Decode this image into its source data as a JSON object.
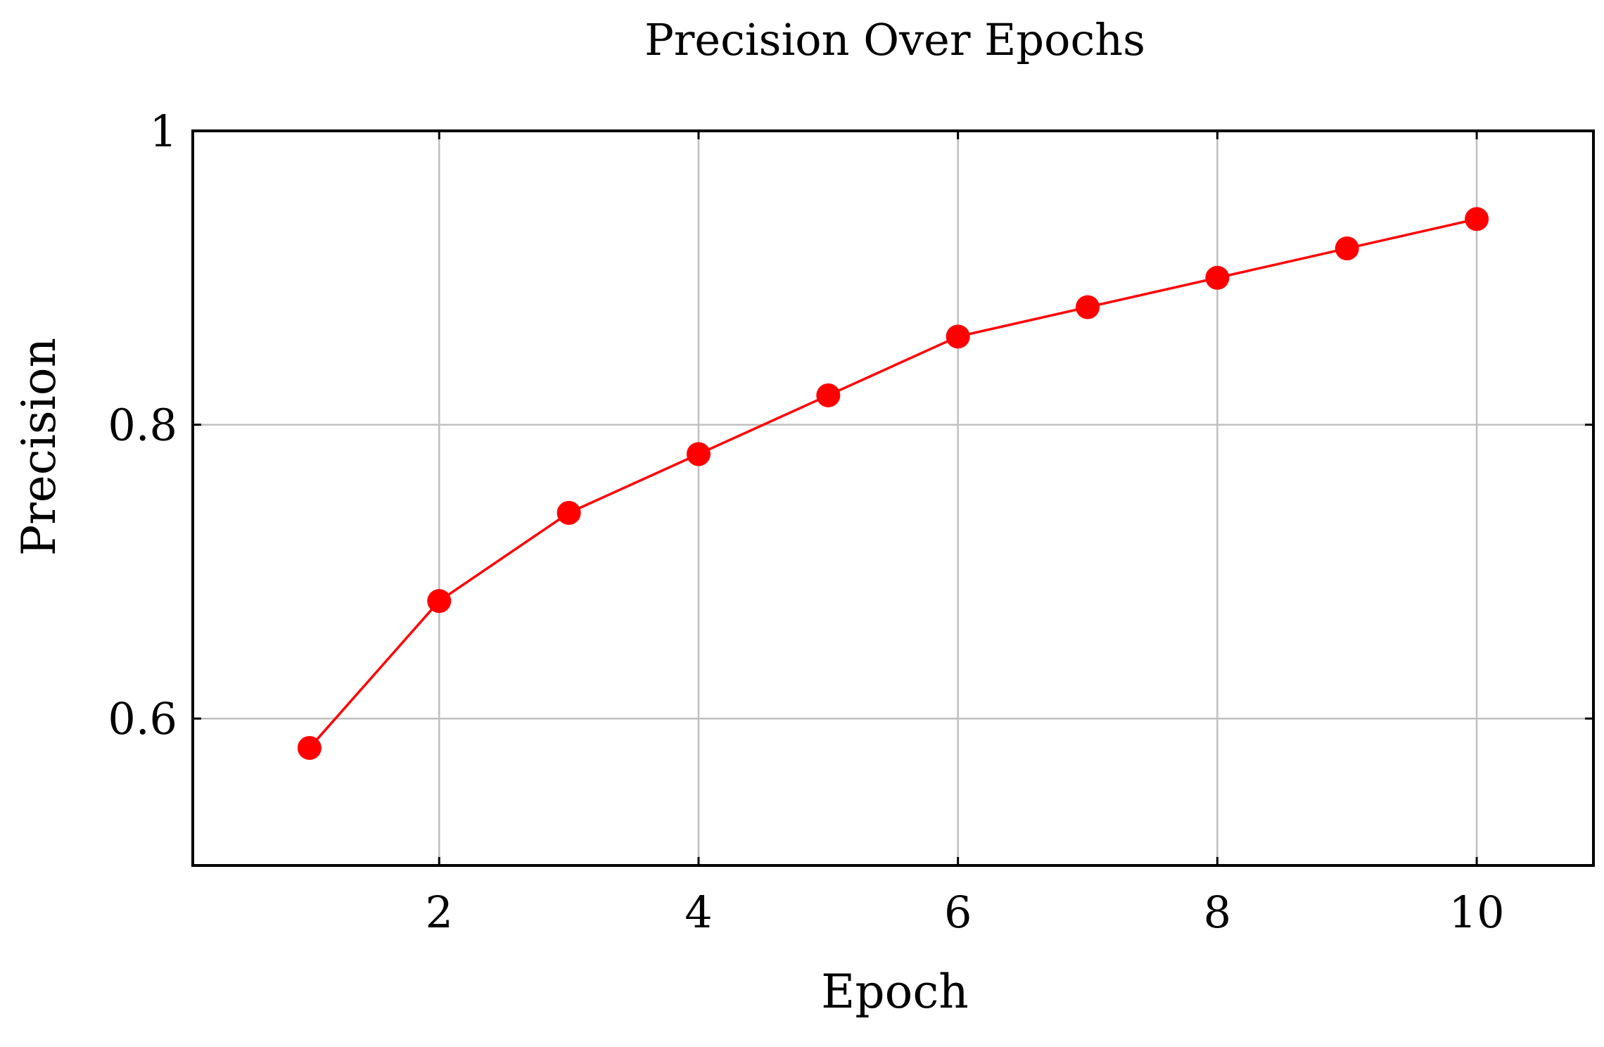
{
  "chart_data": {
    "type": "line",
    "title": "Precision Over Epochs",
    "xlabel": "Epoch",
    "ylabel": "Precision",
    "x": [
      1,
      2,
      3,
      4,
      5,
      6,
      7,
      8,
      9,
      10
    ],
    "series": [
      {
        "values": [
          0.58,
          0.68,
          0.74,
          0.78,
          0.82,
          0.86,
          0.88,
          0.9,
          0.92,
          0.94
        ],
        "color": "#ff0000",
        "marker": "circle"
      }
    ],
    "xticks": [
      2,
      4,
      6,
      8,
      10
    ],
    "yticks": [
      0.6,
      0.8,
      1
    ],
    "ytick_labels": [
      "0.6",
      "0.8",
      "1"
    ],
    "xlim": [
      0.1,
      10.9
    ],
    "ylim": [
      0.5,
      1.0
    ],
    "grid": true,
    "grid_color": "#bfbfbf",
    "axis_color": "#000000"
  }
}
